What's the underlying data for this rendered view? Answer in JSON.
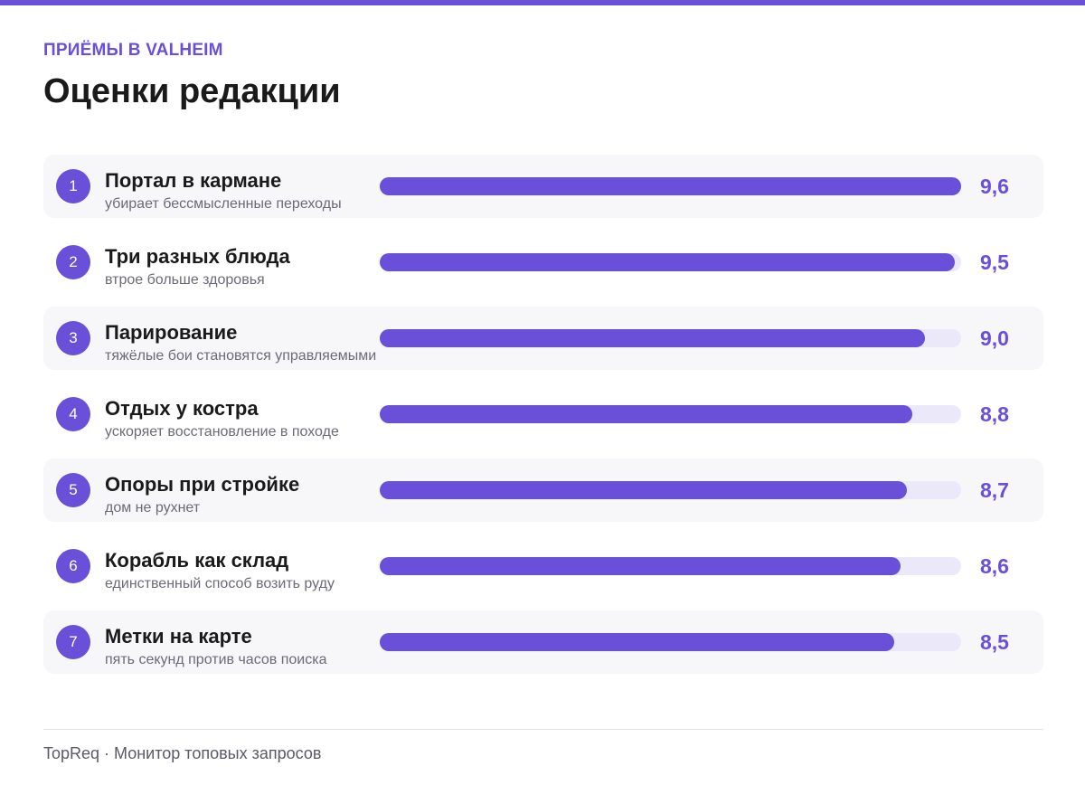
{
  "header": {
    "kicker": "ПРИЁМЫ В VALHEIM",
    "title": "Оценки редакции"
  },
  "chart_data": {
    "type": "bar",
    "orientation": "horizontal",
    "xlim": [
      0,
      9.6
    ],
    "items": [
      {
        "rank": "1",
        "name": "Портал в кармане",
        "description": "убирает бессмысленные переходы",
        "value": 9.6,
        "label": "9,6"
      },
      {
        "rank": "2",
        "name": "Три разных блюда",
        "description": "втрое больше здоровья",
        "value": 9.5,
        "label": "9,5"
      },
      {
        "rank": "3",
        "name": "Парирование",
        "description": "тяжёлые бои становятся управляемыми",
        "value": 9.0,
        "label": "9,0"
      },
      {
        "rank": "4",
        "name": "Отдых у костра",
        "description": "ускоряет восстановление в походе",
        "value": 8.8,
        "label": "8,8"
      },
      {
        "rank": "5",
        "name": "Опоры при стройке",
        "description": "дом не рухнет",
        "value": 8.7,
        "label": "8,7"
      },
      {
        "rank": "6",
        "name": "Корабль как склад",
        "description": "единственный способ возить руду",
        "value": 8.6,
        "label": "8,6"
      },
      {
        "rank": "7",
        "name": "Метки на карте",
        "description": "пять секунд против часов поиска",
        "value": 8.5,
        "label": "8,5"
      }
    ]
  },
  "colors": {
    "accent": "#6a4fd8",
    "track": "#ebe8f9",
    "row_shade": "#f7f7fa"
  },
  "footer": {
    "source": "TopReq · Монитор топовых запросов"
  }
}
